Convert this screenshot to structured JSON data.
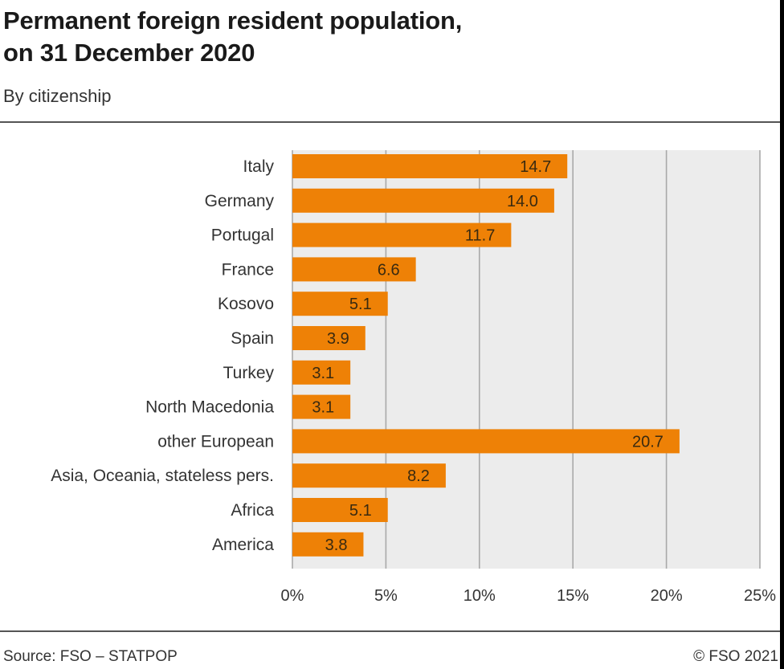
{
  "header": {
    "title": "Permanent foreign resident population,\non 31 December 2020",
    "subtitle": "By citizenship"
  },
  "footer": {
    "source": "Source: FSO – STATPOP",
    "copyright": "© FSO 2021"
  },
  "colors": {
    "bar": "#ee8106",
    "plot_background": "#ececec",
    "grid": "#a9a9a9",
    "value_text": "#3a2a10",
    "category_text": "#333333"
  },
  "chart_data": {
    "type": "bar",
    "orientation": "horizontal",
    "categories": [
      "Italy",
      "Germany",
      "Portugal",
      "France",
      "Kosovo",
      "Spain",
      "Turkey",
      "North Macedonia",
      "other European",
      "Asia, Oceania, stateless pers.",
      "Africa",
      "America"
    ],
    "values": [
      14.7,
      14.0,
      11.7,
      6.6,
      5.1,
      3.9,
      3.1,
      3.1,
      20.7,
      8.2,
      5.1,
      3.8
    ],
    "value_labels": [
      "14.7",
      "14.0",
      "11.7",
      "6.6",
      "5.1",
      "3.9",
      "3.1",
      "3.1",
      "20.7",
      "8.2",
      "5.1",
      "3.8"
    ],
    "xlim": [
      0,
      25
    ],
    "xticks": [
      0,
      5,
      10,
      15,
      20,
      25
    ],
    "xtick_labels": [
      "0%",
      "5%",
      "10%",
      "15%",
      "20%",
      "25%"
    ],
    "grid": true
  }
}
